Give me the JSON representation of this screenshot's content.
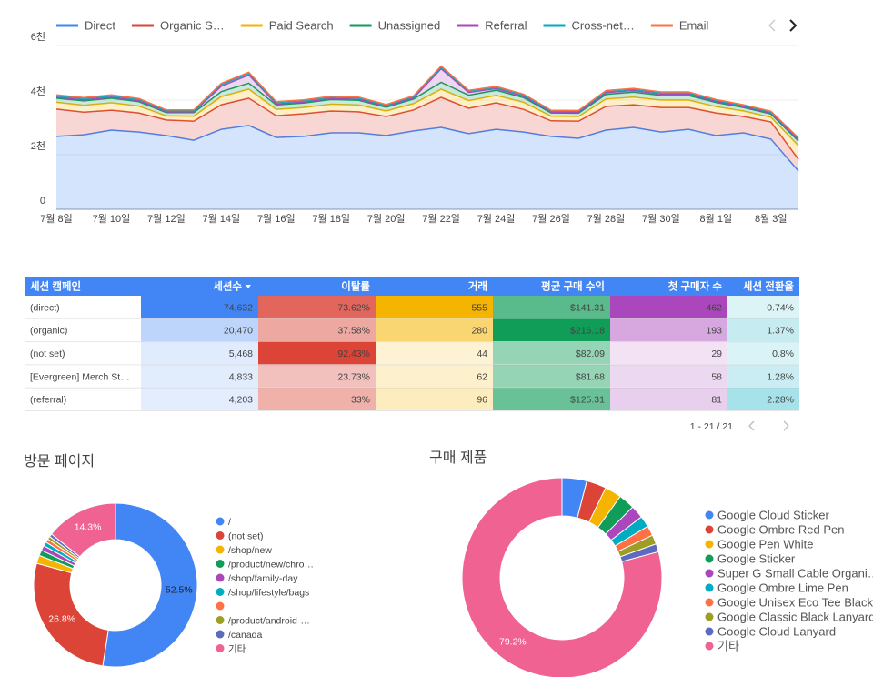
{
  "chart_data": [
    {
      "type": "area",
      "stacked": true,
      "categories": [
        "7월 8일",
        null,
        "7월 10일",
        null,
        "7월 12일",
        null,
        "7월 14일",
        null,
        "7월 16일",
        null,
        "7월 18일",
        null,
        "7월 20일",
        null,
        "7월 22일",
        null,
        "7월 24일",
        null,
        "7월 26일",
        null,
        "7월 28일",
        null,
        "7월 30일",
        null,
        "8월 1일",
        null,
        "8월 3일",
        null
      ],
      "ylim": [
        0,
        6000
      ],
      "yticks": [
        0,
        {
          "value": 2000,
          "label": "2천"
        },
        {
          "value": 4000,
          "label": "4천"
        },
        {
          "value": 6000,
          "label": "6천"
        }
      ],
      "legend": "top",
      "series": [
        {
          "name": "Direct",
          "color": "#4285f4",
          "values": [
            2670,
            2730,
            2900,
            2830,
            2700,
            2530,
            2930,
            3070,
            2630,
            2670,
            2800,
            2800,
            2700,
            2870,
            3000,
            2770,
            2930,
            2830,
            2670,
            2600,
            2900,
            3000,
            2830,
            2930,
            2700,
            2800,
            2570,
            1400
          ]
        },
        {
          "name": "Organic S…",
          "color": "#db4437",
          "values": [
            1000,
            830,
            730,
            700,
            570,
            700,
            900,
            1000,
            800,
            830,
            800,
            770,
            700,
            770,
            1100,
            930,
            970,
            830,
            570,
            630,
            870,
            830,
            900,
            800,
            830,
            600,
            630,
            430
          ]
        },
        {
          "name": "Paid Search",
          "color": "#f4b400",
          "values": [
            250,
            250,
            270,
            250,
            150,
            180,
            300,
            330,
            230,
            230,
            250,
            250,
            200,
            230,
            300,
            280,
            270,
            260,
            170,
            170,
            270,
            280,
            270,
            270,
            230,
            200,
            170,
            500
          ]
        },
        {
          "name": "Unassigned",
          "color": "#0f9d58",
          "values": [
            150,
            160,
            170,
            160,
            120,
            130,
            180,
            220,
            160,
            160,
            170,
            170,
            140,
            170,
            250,
            200,
            190,
            170,
            120,
            120,
            170,
            180,
            170,
            170,
            150,
            130,
            120,
            170
          ]
        },
        {
          "name": "Referral",
          "color": "#ab47bc",
          "values": [
            40,
            40,
            40,
            40,
            30,
            30,
            200,
            300,
            40,
            40,
            40,
            40,
            30,
            40,
            500,
            100,
            60,
            50,
            30,
            30,
            60,
            60,
            50,
            50,
            40,
            30,
            30,
            40
          ]
        },
        {
          "name": "Cross-net…",
          "color": "#00acc1",
          "values": [
            50,
            50,
            50,
            50,
            40,
            40,
            60,
            60,
            50,
            50,
            50,
            50,
            40,
            50,
            60,
            50,
            50,
            50,
            40,
            40,
            50,
            50,
            50,
            50,
            40,
            40,
            40,
            50
          ]
        },
        {
          "name": "Email",
          "color": "#ff7043",
          "values": [
            30,
            30,
            30,
            30,
            30,
            30,
            40,
            40,
            30,
            30,
            30,
            30,
            30,
            30,
            40,
            30,
            30,
            30,
            30,
            30,
            30,
            30,
            30,
            30,
            30,
            30,
            30,
            30
          ]
        }
      ]
    },
    {
      "type": "donut",
      "title": "방문 페이지",
      "categories": [
        "/",
        "(not set)",
        "/shop/new",
        "/product/new/chro…",
        "/shop/family-day",
        "/shop/lifestyle/bags",
        null,
        "/product/android-…",
        "/canada",
        "기타"
      ],
      "values": [
        52.5,
        26.8,
        1.6,
        1.1,
        1.0,
        0.8,
        0.7,
        0.6,
        0.6,
        14.3
      ],
      "value_labels": [
        "52.5%",
        "26.8%",
        null,
        null,
        null,
        null,
        null,
        null,
        null,
        "14.3%"
      ],
      "colors": [
        "#4285f4",
        "#db4437",
        "#f4b400",
        "#0f9d58",
        "#ab47bc",
        "#00acc1",
        "#ff7043",
        "#9e9d24",
        "#5c6bc0",
        "#f06292"
      ]
    },
    {
      "type": "donut",
      "title": "구매 제품",
      "categories": [
        "Google Cloud Sticker",
        "Google Ombre Red Pen",
        "Google Pen White",
        "Google Sticker",
        "Super G Small Cable Organi…",
        "Google Ombre Lime Pen",
        "Google Unisex Eco Tee Black",
        "Google Classic Black Lanyard",
        "Google Cloud Lanyard",
        "기타"
      ],
      "values": [
        4.0,
        3.2,
        2.7,
        2.6,
        2.1,
        1.8,
        1.6,
        1.5,
        1.3,
        79.2
      ],
      "value_labels": [
        null,
        null,
        null,
        null,
        null,
        null,
        null,
        null,
        null,
        "79.2%"
      ],
      "colors": [
        "#4285f4",
        "#db4437",
        "#f4b400",
        "#0f9d58",
        "#ab47bc",
        "#00acc1",
        "#ff7043",
        "#9e9d24",
        "#5c6bc0",
        "#f06292"
      ]
    }
  ],
  "table": {
    "columns": [
      "세션 캠페인",
      "세션수",
      "이탈률",
      "거래",
      "평균 구매 수익",
      "첫 구매자 수",
      "세션 전환율"
    ],
    "colors": [
      null,
      "#4285f4",
      "#db4437",
      "#f4b400",
      "#0f9d58",
      "#ab47bc",
      "#00acc1"
    ],
    "rows": [
      [
        "(direct)",
        "74,632",
        "73.62%",
        "555",
        "$141.31",
        "462",
        "0.74%"
      ],
      [
        "(organic)",
        "20,470",
        "37.58%",
        "280",
        "$216.18",
        "193",
        "1.37%"
      ],
      [
        "(not set)",
        "5,468",
        "92.43%",
        "44",
        "$82.09",
        "29",
        "0.8%"
      ],
      [
        "[Evergreen] Merch St…",
        "4,833",
        "23.73%",
        "62",
        "$81.68",
        "58",
        "1.28%"
      ],
      [
        "(referral)",
        "4,203",
        "33%",
        "96",
        "$125.31",
        "81",
        "2.28%"
      ]
    ],
    "pagination": "1 - 21 / 21"
  }
}
